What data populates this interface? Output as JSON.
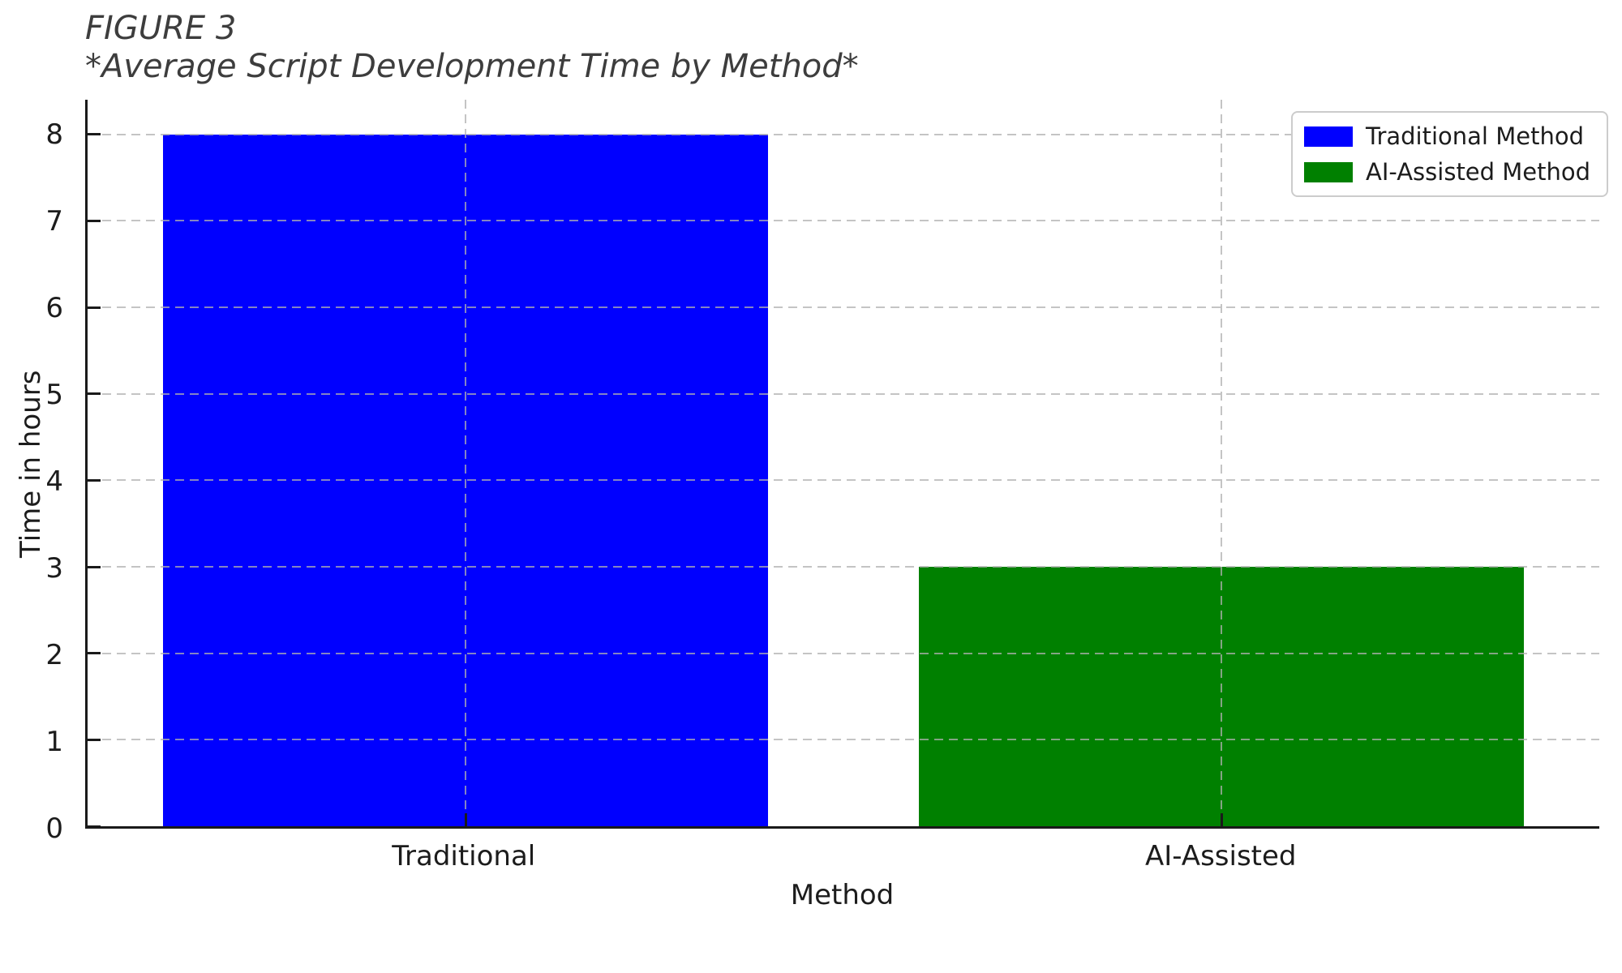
{
  "figure": {
    "title": "FIGURE 3",
    "subtitle": "*Average Script Development Time by Method*"
  },
  "chart_data": {
    "type": "bar",
    "categories": [
      "Traditional",
      "AI-Assisted"
    ],
    "values": [
      8,
      3
    ],
    "series": [
      {
        "name": "Traditional Method",
        "color": "#0000ff",
        "values": [
          8,
          0
        ]
      },
      {
        "name": "AI-Assisted Method",
        "color": "#008000",
        "values": [
          0,
          3
        ]
      }
    ],
    "bar_colors": [
      "#0000ff",
      "#008000"
    ],
    "title": "FIGURE 3\n*Average Script Development Time by Method*",
    "xlabel": "Method",
    "ylabel": "Time in hours",
    "ylim": [
      0,
      8.4
    ],
    "yticks": [
      0,
      1,
      2,
      3,
      4,
      5,
      6,
      7,
      8
    ],
    "grid": "dashed, both axes, drawn over bars",
    "legend": {
      "position": "upper right",
      "items": [
        {
          "label": "Traditional Method",
          "color": "#0000ff"
        },
        {
          "label": "AI-Assisted Method",
          "color": "#008000"
        }
      ]
    }
  }
}
